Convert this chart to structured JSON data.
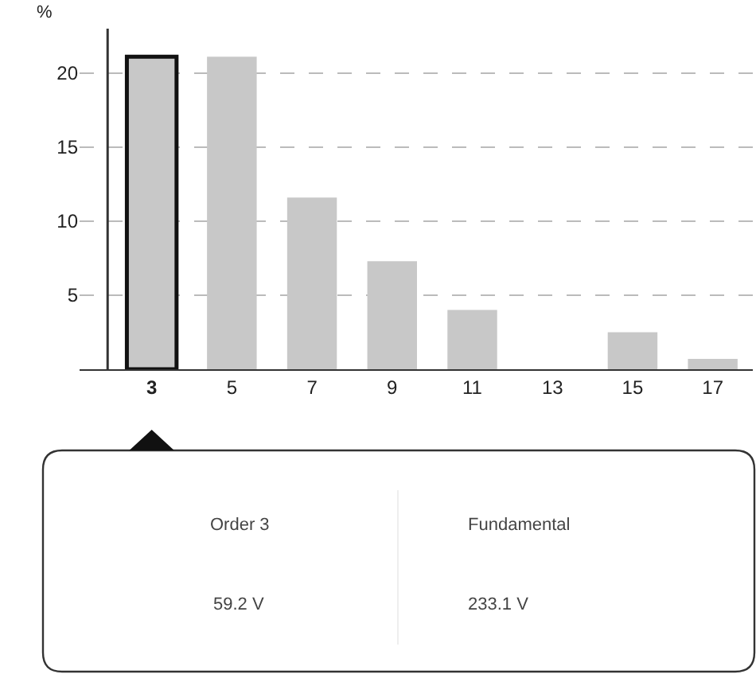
{
  "chart_data": {
    "type": "bar",
    "ylabel": "%",
    "categories": [
      "3",
      "5",
      "7",
      "9",
      "11",
      "13",
      "15",
      "17"
    ],
    "values": [
      21.1,
      21.1,
      11.6,
      7.3,
      4,
      0,
      2.5,
      0.7
    ],
    "color": "#c8c8c8",
    "ylim": [
      0,
      23
    ],
    "yticks": [
      5,
      10,
      15,
      20
    ],
    "grid": "y",
    "legend": false,
    "annotations": [
      "Order 3",
      "59.2 V",
      "Fundamental",
      "233.1 V"
    ]
  }
}
